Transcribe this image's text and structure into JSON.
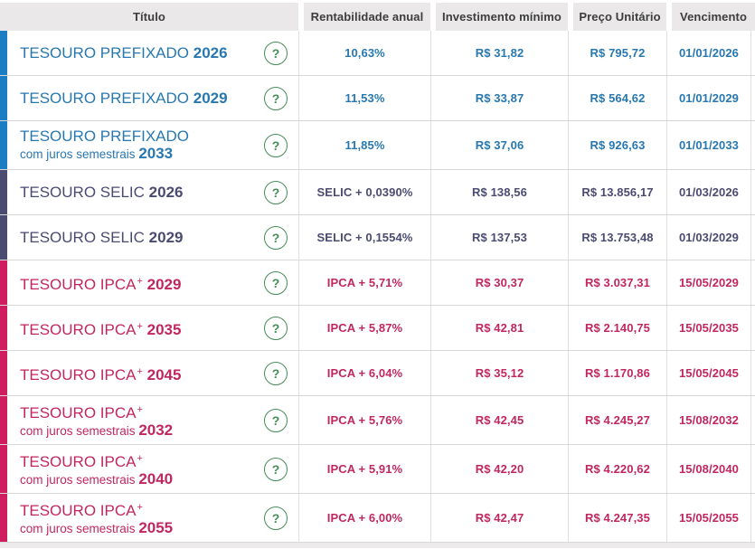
{
  "table": {
    "columns": [
      "Título",
      "Rentabilidade anual",
      "Investimento mínimo",
      "Preço Unitário",
      "Vencimento"
    ],
    "help_glyph": "?",
    "plus_glyph": "+",
    "rows": [
      {
        "name": "TESOURO PREFIXADO",
        "plus": false,
        "subtitle": null,
        "year": "2026",
        "type": "prefixado",
        "rate": "10,63%",
        "min_investment": "R$ 31,82",
        "unit_price": "R$ 795,72",
        "maturity": "01/01/2026"
      },
      {
        "name": "TESOURO PREFIXADO",
        "plus": false,
        "subtitle": null,
        "year": "2029",
        "type": "prefixado",
        "rate": "11,53%",
        "min_investment": "R$ 33,87",
        "unit_price": "R$ 564,62",
        "maturity": "01/01/2029"
      },
      {
        "name": "TESOURO PREFIXADO",
        "plus": false,
        "subtitle": "com juros semestrais",
        "year": "2033",
        "type": "prefixado",
        "rate": "11,85%",
        "min_investment": "R$ 37,06",
        "unit_price": "R$ 926,63",
        "maturity": "01/01/2033"
      },
      {
        "name": "TESOURO SELIC",
        "plus": false,
        "subtitle": null,
        "year": "2026",
        "type": "selic",
        "rate": "SELIC + 0,0390%",
        "min_investment": "R$ 138,56",
        "unit_price": "R$ 13.856,17",
        "maturity": "01/03/2026"
      },
      {
        "name": "TESOURO SELIC",
        "plus": false,
        "subtitle": null,
        "year": "2029",
        "type": "selic",
        "rate": "SELIC + 0,1554%",
        "min_investment": "R$ 137,53",
        "unit_price": "R$ 13.753,48",
        "maturity": "01/03/2029"
      },
      {
        "name": "TESOURO IPCA",
        "plus": true,
        "subtitle": null,
        "year": "2029",
        "type": "ipca",
        "rate": "IPCA + 5,71%",
        "min_investment": "R$ 30,37",
        "unit_price": "R$ 3.037,31",
        "maturity": "15/05/2029"
      },
      {
        "name": "TESOURO IPCA",
        "plus": true,
        "subtitle": null,
        "year": "2035",
        "type": "ipca",
        "rate": "IPCA + 5,87%",
        "min_investment": "R$ 42,81",
        "unit_price": "R$ 2.140,75",
        "maturity": "15/05/2035"
      },
      {
        "name": "TESOURO IPCA",
        "plus": true,
        "subtitle": null,
        "year": "2045",
        "type": "ipca",
        "rate": "IPCA + 6,04%",
        "min_investment": "R$ 35,12",
        "unit_price": "R$ 1.170,86",
        "maturity": "15/05/2045"
      },
      {
        "name": "TESOURO IPCA",
        "plus": true,
        "subtitle": "com juros semestrais",
        "year": "2032",
        "type": "ipca",
        "rate": "IPCA + 5,76%",
        "min_investment": "R$ 42,45",
        "unit_price": "R$ 4.245,27",
        "maturity": "15/08/2032"
      },
      {
        "name": "TESOURO IPCA",
        "plus": true,
        "subtitle": "com juros semestrais",
        "year": "2040",
        "type": "ipca",
        "rate": "IPCA + 5,91%",
        "min_investment": "R$ 42,20",
        "unit_price": "R$ 4.220,62",
        "maturity": "15/08/2040"
      },
      {
        "name": "TESOURO IPCA",
        "plus": true,
        "subtitle": "com juros semestrais",
        "year": "2055",
        "type": "ipca",
        "rate": "IPCA + 6,00%",
        "min_investment": "R$ 42,47",
        "unit_price": "R$ 4.247,35",
        "maturity": "15/05/2055"
      }
    ],
    "colors": {
      "prefixado_text": "#2878b0",
      "prefixado_bar": "#1b7ec2",
      "selic_text": "#4b4b72",
      "selic_bar": "#4b4b72",
      "ipca_text": "#c1275f",
      "ipca_bar": "#d01d60",
      "help_green": "#468c57",
      "header_bg": "#eae8e8",
      "header_text": "#3d3d3d"
    }
  }
}
